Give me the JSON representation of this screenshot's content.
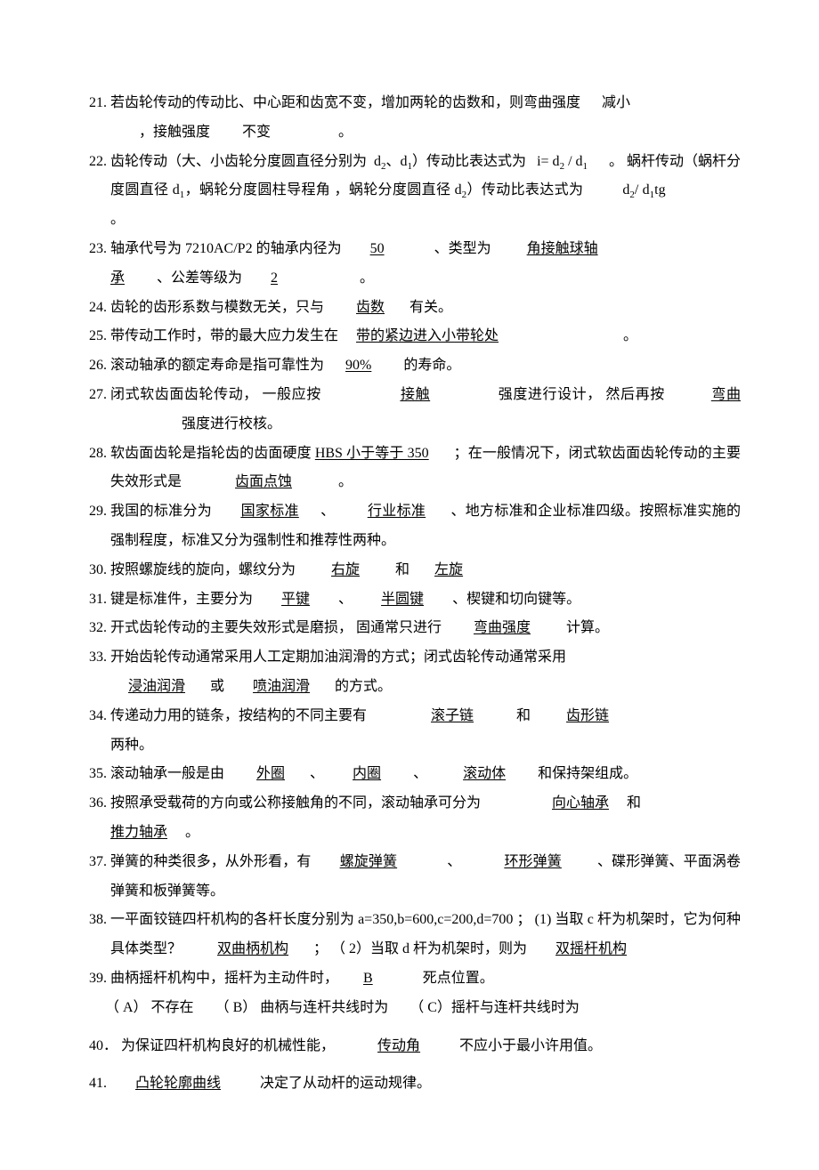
{
  "doc": {
    "background_color": "#ffffff",
    "text_color": "#000000",
    "font_family": "SimSun",
    "base_fontsize": 16
  },
  "q21": {
    "num": "21.",
    "before": "若齿轮传动的传动比、中心距和齿宽不变，增加两轮的齿数和，则弯曲强度",
    "ans1_pre_blank": "     ",
    "ans1": "减小",
    "line2_blank1": "        ",
    "mid": "，接触强度",
    "blank2": "        ",
    "ans2": "不变",
    "blank3": "                  ",
    "end": "。"
  },
  "q22": {
    "num": "22.",
    "t1": "齿轮传动（大、小齿轮分度圆直径分别为",
    "d2": "d",
    "sub2": "2",
    "t2": "、",
    "d1": "d",
    "sub1": "1",
    "t3": "）传动比表达式为",
    "blank_a": "  ",
    "ans_a": "i= d",
    "ans_a_s2": "2",
    "ans_a_mid": " / d",
    "ans_a_s1": "1",
    "blank_a2": "      ",
    "t4": "。  蜗杆传动（蜗杆分度圆直径 d",
    "sub1b": "1",
    "t5": "，蜗轮分度圆柱导程角    ，蜗轮分度圆直径  d",
    "sub2b": "2",
    "t6": "）传动比表达式为",
    "blank_b1": "           ",
    "ans_b": "d",
    "ans_b_s2": "2",
    "ans_b_mid": "/ d",
    "ans_b_s1": "1",
    "ans_b_tg": "tg",
    "blank_b2": "                    ",
    "end": "。"
  },
  "q23": {
    "num": "23.",
    "t1": "轴承代号为   7210AC/P2 的轴承内径为",
    "blank1": "       ",
    "ans1": "50",
    "blank1b": "              ",
    "t2": "、类型为",
    "blank2": "         ",
    "ans2a": "角接触球轴",
    "ans2b": "承",
    "blank2b": "         ",
    "t3": "、公差等级为",
    "blank3": "       ",
    "ans3": "2",
    "blank3b": "                      ",
    "end": " 。"
  },
  "q24": {
    "num": "24.",
    "t1": "齿轮的齿形系数与模数无关，只与",
    "blank1": "        ",
    "ans1": "齿数",
    "blank1b": "       ",
    "t2": "有关。"
  },
  "q25": {
    "num": "25.",
    "t1": "带传动工作时，带的最大应力发生在",
    "blank1": "    ",
    "ans1": "带的紧边进入小带轮处",
    "blank1b": "                                  ",
    "end": " 。"
  },
  "q26": {
    "num": "26.",
    "t1": "滚动轴承的额定寿命是指可靠性为",
    "blank1": "     ",
    "ans1": "90%",
    "blank1b": "         ",
    "t2": "的寿命。"
  },
  "q27": {
    "num": "27.",
    "t1": "闭式软齿面齿轮传动，  一般应按",
    "blank1": "                     ",
    "ans1": "接触",
    "blank1b": "                  ",
    "t2": " 强度进行设计，  然后再按",
    "blank2": "             ",
    "ans2": "弯曲",
    "blank2b": "                   ",
    "t3": " 强度进行校核。"
  },
  "q28": {
    "num": "28.",
    "t1": "软齿面齿轮是指轮齿的齿面硬度      ",
    "ans1": "HBS 小于等于 350",
    "blank1b": "       ",
    "t2": "；在一般情况下，闭式软齿面齿轮传动的主要失效形式是",
    "blank2": "              ",
    "ans2": "齿面点蚀",
    "blank2b": "             ",
    "end": "。"
  },
  "q29": {
    "num": "29.",
    "t1": "我国的标准分为",
    "blank1": "       ",
    "ans1": "国家标准",
    "blank1b": "      ",
    "t2": "、",
    "blank2": "        ",
    "ans2": "行业标准",
    "blank2b": "       ",
    "t3": "、地方标准和企业标准四级。按照标准实施的强制程度，标准又分为强制性和推荐性两种。"
  },
  "q30": {
    "num": "30.",
    "t1": "按照螺旋线的旋向，螺纹分为",
    "blank1": "         ",
    "ans1": "右旋",
    "blank1b": "         ",
    "t2": " 和",
    "blank2": "       ",
    "ans2": "左旋",
    "blank2b": "       "
  },
  "q31": {
    "num": "31.",
    "t1": "键是标准件，主要分为",
    "blank1": "       ",
    "ans1": "平键",
    "blank1b": "        ",
    "t2": "、",
    "blank2": "        ",
    "ans2": "半圆键",
    "blank2b": "        ",
    "t3": "、楔键和切向键等。"
  },
  "q32": {
    "num": "32.",
    "t1": "开式齿轮传动的主要失效形式是磨损，    固通常只进行",
    "blank1": "        ",
    "ans1": "弯曲强度",
    "blank1b": "          ",
    "t2": "计算。"
  },
  "q33": {
    "num": "33.",
    "t1": " 开始齿轮传动通常采用人工定期加油润滑的方式；闭式齿轮传动通常采用      ",
    "blank0": "   ",
    "blank1": "     ",
    "ans1": "浸油润滑",
    "blank1b": "       ",
    "t2": "或",
    "blank2": "       ",
    "ans2": "喷油润滑",
    "blank2b": "       ",
    "t3": "的方式。"
  },
  "q34": {
    "num": "34.",
    "t1": "传递动力用的链条，按结构的不同主要有",
    "blank1": "               ",
    "ans1": "滚子链",
    "blank1b": "           ",
    "t2": " 和",
    "blank2": "          ",
    "ans2": "齿形链 ",
    "t3": "两种。"
  },
  "q35": {
    "num": "35.",
    "t1": "滚动轴承一般是由",
    "blank1": "        ",
    "ans1": "外圈",
    "blank1b": "       ",
    "t2": "、",
    "blank2": "        ",
    "ans2": "内圈",
    "blank2b": "         ",
    "t3": "、",
    "blank3": "          ",
    "ans3": "滚动体",
    "blank3b": "         ",
    "t4": "和保持架组成。"
  },
  "q36": {
    "num": "36.",
    "t1": "按照承受载荷的方向或公称接触角的不同，滚动轴承可分为",
    "blank1": "               ",
    "ans1": "向心轴承",
    "blank1b": "    ",
    "t2": " 和",
    "ans2": "推力轴承",
    "blank2b": "     ",
    "end": "。"
  },
  "q37": {
    "num": "37.",
    "t1": "弹簧的种类很多，从外形看，有",
    "blank1": "       ",
    "ans1": "螺旋弹簧",
    "blank1b": "              ",
    "t2": "、",
    "blank2": "            ",
    "ans2": "环形弹簧",
    "blank2b": "          ",
    "t3": "、碟形弹簧、平面涡卷弹簧和板弹簧等。"
  },
  "q38": {
    "num": "38.",
    "t1": "一平面铰链四杆机构的各杆长度分别为      a=350,b=600,c=200,d=700  ；  (1)       当取 c 杆为机架时，它为何种具体类型？",
    "blank1": "         ",
    "ans1": "双曲柄机构",
    "blank1b": "       ",
    "t2": "； （ 2）当取 d 杆为机架时，则为",
    "blank2": "       ",
    "ans2": "双摇杆机构",
    "blank2b": "   "
  },
  "q39": {
    "num": "39.",
    "t1": "曲柄摇杆机构中，摇杆为主动件时，",
    "blank1": "      ",
    "ans1": "B",
    "blank1b": "              ",
    "t2": "死点位置。",
    "optA": "（ A）  不存在",
    "optB": "（ B）  曲柄与连杆共线时为",
    "optC": "（ C）摇杆与连杆共线时为"
  },
  "q40": {
    "num": "40．",
    "t1": "为保证四杆机构良好的机械性能，",
    "blank1": "           ",
    "ans1": "传动角",
    "blank1b": "           ",
    "t2": "不应小于最小许用值。"
  },
  "q41": {
    "num": "41.",
    "blank1": "       ",
    "ans1": "凸轮轮廓曲线",
    "blank1b": "           ",
    "t1": "决定了从动杆的运动规律。"
  }
}
